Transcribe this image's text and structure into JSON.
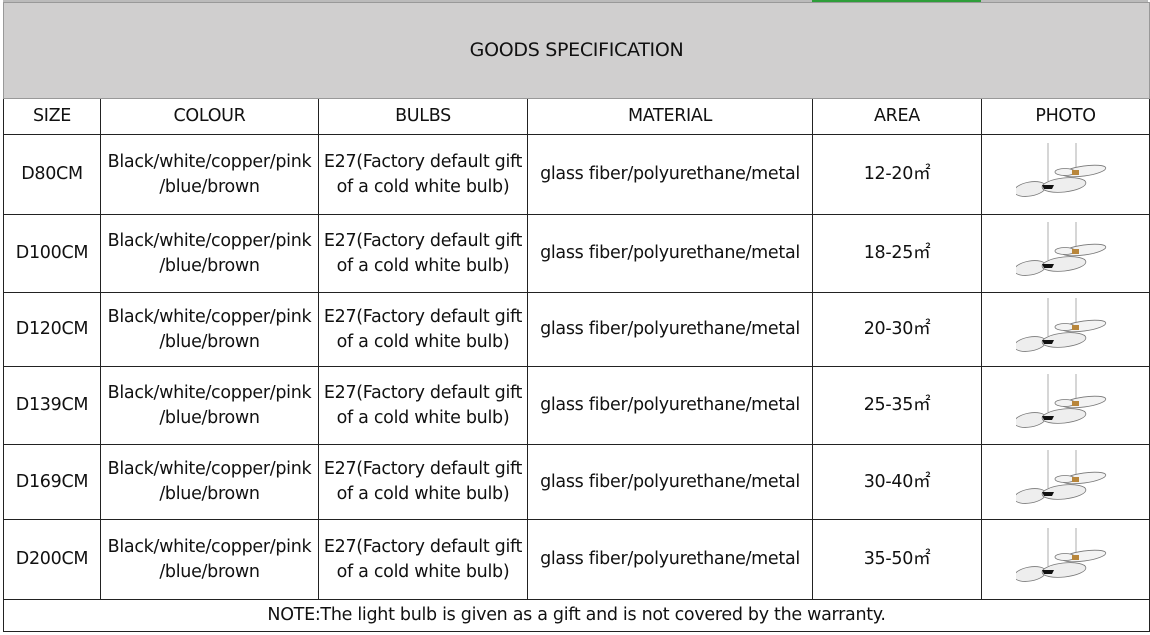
{
  "title": "GOODS SPECIFICATION",
  "headers": [
    "SIZE",
    "COLOUR",
    "BULBS",
    "MATERIAL",
    "AREA",
    "PHOTO"
  ],
  "rows": [
    {
      "size": "D80CM",
      "colour_1": "Black/white/copper/pink",
      "colour_2": "/blue/brown",
      "bulbs_1": "E27(Factory default gift",
      "bulbs_2": "of a cold white bulb)",
      "material": "glass fiber/polyurethane/metal",
      "area": "12-20㎡",
      "photo": "pendant-lamp-image"
    },
    {
      "size": "D100CM",
      "colour_1": "Black/white/copper/pink",
      "colour_2": "/blue/brown",
      "bulbs_1": "E27(Factory default gift",
      "bulbs_2": "of a cold white bulb)",
      "material": "glass fiber/polyurethane/metal",
      "area": "18-25㎡",
      "photo": "pendant-lamp-image"
    },
    {
      "size": "D120CM",
      "colour_1": "Black/white/copper/pink",
      "colour_2": "/blue/brown",
      "bulbs_1": "E27(Factory default gift",
      "bulbs_2": "of a cold white bulb)",
      "material": "glass fiber/polyurethane/metal",
      "area": "20-30㎡",
      "photo": "pendant-lamp-image"
    },
    {
      "size": "D139CM",
      "colour_1": "Black/white/copper/pink",
      "colour_2": "/blue/brown",
      "bulbs_1": "E27(Factory default gift",
      "bulbs_2": "of a cold white bulb)",
      "material": "glass fiber/polyurethane/metal",
      "area": "25-35㎡",
      "photo": "pendant-lamp-image"
    },
    {
      "size": "D169CM",
      "colour_1": "Black/white/copper/pink",
      "colour_2": "/blue/brown",
      "bulbs_1": "E27(Factory default gift",
      "bulbs_2": "of a cold white bulb)",
      "material": "glass fiber/polyurethane/metal",
      "area": "30-40㎡",
      "photo": "pendant-lamp-image"
    },
    {
      "size": "D200CM",
      "colour_1": "Black/white/copper/pink",
      "colour_2": "/blue/brown",
      "bulbs_1": "E27(Factory default gift",
      "bulbs_2": "of a cold white bulb)",
      "material": "glass fiber/polyurethane/metal",
      "area": "35-50㎡",
      "photo": "pendant-lamp-image"
    }
  ],
  "note": "NOTE:The light bulb is given as a gift and is not covered by the warranty.",
  "colors": {
    "title_bg": "#d0cfcf",
    "accent": "#2e9e3a",
    "lamp_black": "#111111",
    "lamp_copper": "#b8863b"
  }
}
